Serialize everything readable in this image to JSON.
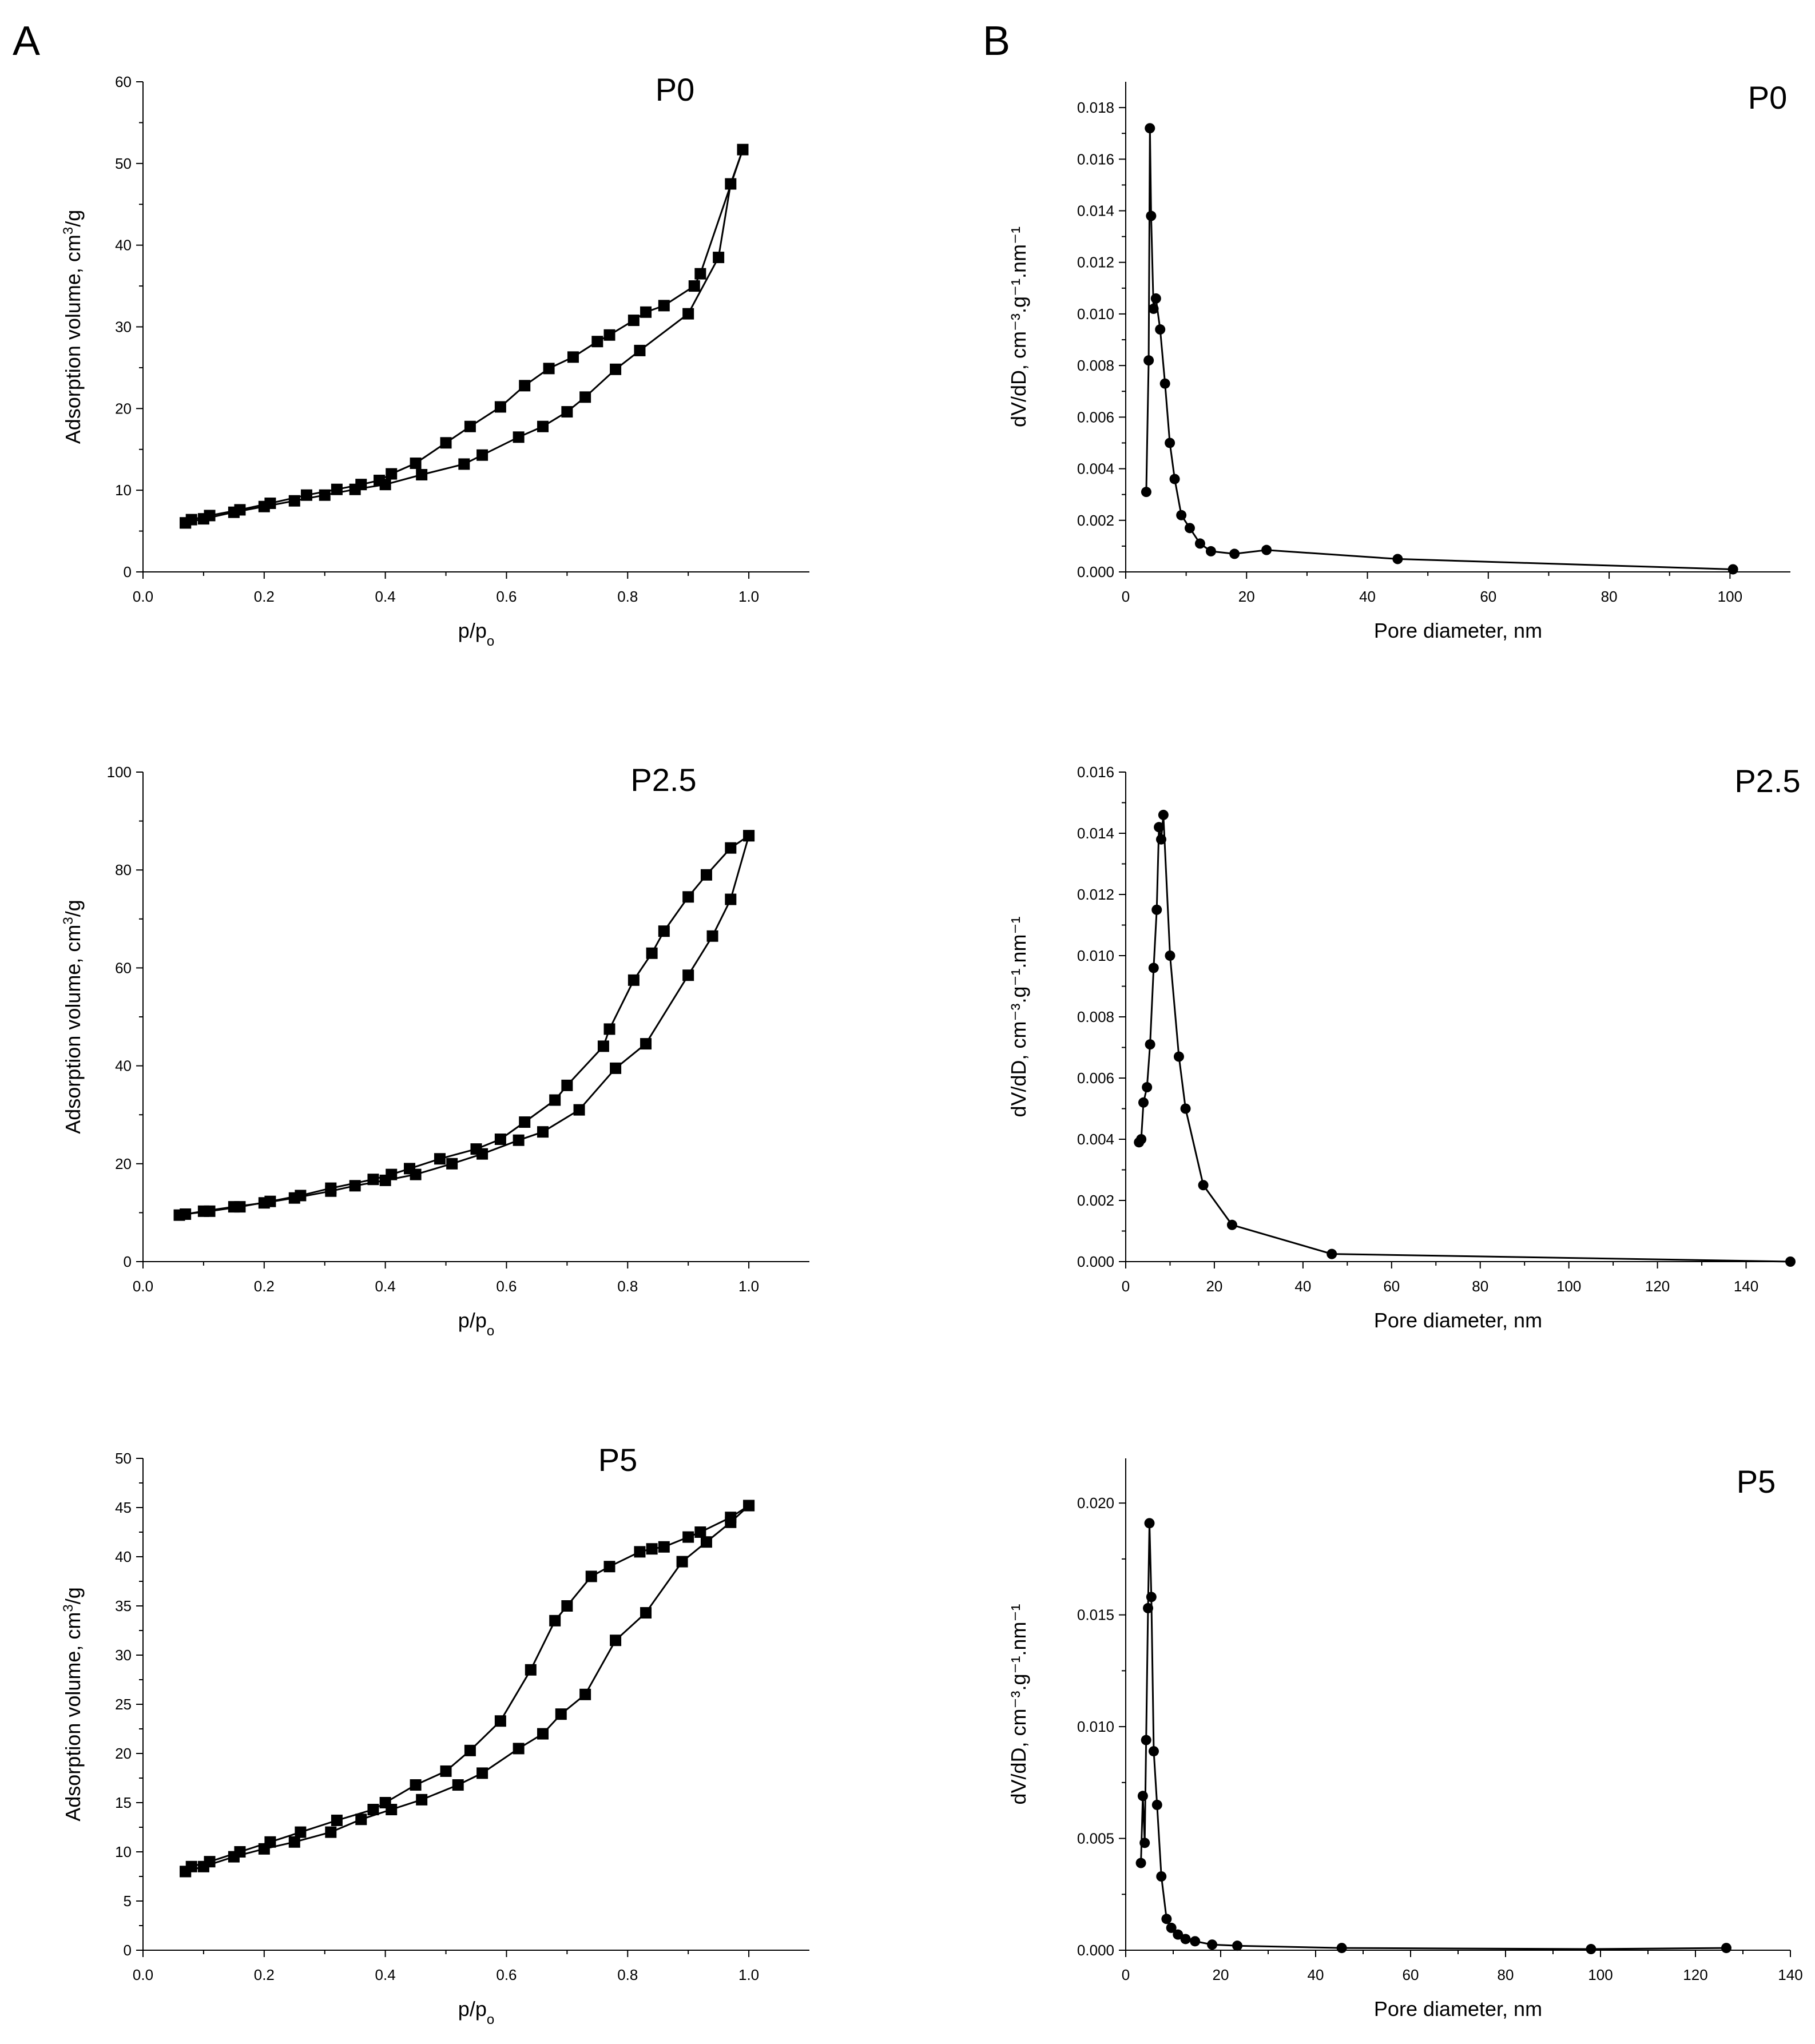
{
  "figure": {
    "panel_labels": [
      "A",
      "B"
    ]
  },
  "colors": {
    "ink": "#000000",
    "background": "#ffffff"
  },
  "chart_data": [
    {
      "id": "iso-p0",
      "column": "A",
      "type": "line",
      "title": "P0",
      "marker": "square",
      "xlabel": "p/p",
      "xlabel_sub": "o",
      "ylabel": "Adsorption volume, cm",
      "ylabel_sup": "3",
      "ylabel_tail": "/g",
      "xlim": [
        0,
        1.1
      ],
      "ylim": [
        0,
        60
      ],
      "x_ticks": [
        0.0,
        0.2,
        0.4,
        0.6,
        0.8,
        1.0
      ],
      "x_tick_labels": [
        "0.0",
        "0.2",
        "0.4",
        "0.6",
        "0.8",
        "1.0"
      ],
      "y_ticks": [
        0,
        10,
        20,
        30,
        40,
        50,
        60
      ],
      "y_tick_labels": [
        "0",
        "10",
        "20",
        "30",
        "40",
        "50",
        "60"
      ],
      "series": [
        {
          "name": "adsorption",
          "x": [
            0.07,
            0.1,
            0.15,
            0.2,
            0.25,
            0.3,
            0.35,
            0.4,
            0.46,
            0.53,
            0.56,
            0.62,
            0.66,
            0.7,
            0.73,
            0.78,
            0.82,
            0.9,
            0.95,
            0.97,
            0.99
          ],
          "y": [
            6.0,
            6.5,
            7.3,
            8.0,
            8.7,
            9.4,
            10.1,
            10.7,
            11.9,
            13.2,
            14.3,
            16.5,
            17.8,
            19.6,
            21.4,
            24.8,
            27.1,
            31.6,
            38.5,
            47.5,
            51.7
          ]
        },
        {
          "name": "desorption",
          "x": [
            0.99,
            0.92,
            0.91,
            0.86,
            0.83,
            0.81,
            0.77,
            0.75,
            0.71,
            0.67,
            0.63,
            0.59,
            0.54,
            0.5,
            0.45,
            0.41,
            0.39,
            0.36,
            0.32,
            0.27,
            0.21,
            0.16,
            0.11,
            0.08,
            0.07
          ],
          "y": [
            51.7,
            36.5,
            35.0,
            32.6,
            31.8,
            30.8,
            29.0,
            28.2,
            26.3,
            24.9,
            22.8,
            20.2,
            17.8,
            15.8,
            13.3,
            12.0,
            11.2,
            10.7,
            10.1,
            9.4,
            8.4,
            7.6,
            6.9,
            6.4,
            6.0
          ]
        }
      ]
    },
    {
      "id": "psd-p0",
      "column": "B",
      "type": "line",
      "title": "P0",
      "marker": "circle",
      "xlabel": "Pore diameter, nm",
      "ylabel": "dV/dD, cm⁻³.g⁻¹.nm⁻¹",
      "xlim": [
        0,
        110
      ],
      "ylim": [
        0,
        0.019
      ],
      "x_ticks": [
        0,
        20,
        40,
        60,
        80,
        100
      ],
      "x_tick_labels": [
        "0",
        "20",
        "40",
        "60",
        "80",
        "100"
      ],
      "y_ticks": [
        0,
        0.002,
        0.004,
        0.006,
        0.008,
        0.01,
        0.012,
        0.014,
        0.016,
        0.018
      ],
      "y_tick_labels": [
        "0.000",
        "0.002",
        "0.004",
        "0.006",
        "0.008",
        "0.010",
        "0.012",
        "0.014",
        "0.016",
        "0.018"
      ],
      "series": [
        {
          "name": "BJH",
          "x": [
            3.4,
            3.8,
            4.0,
            4.2,
            4.6,
            5.0,
            5.7,
            6.5,
            7.3,
            8.1,
            9.2,
            10.6,
            12.3,
            14.1,
            18.0,
            23.3,
            45.0,
            100.5
          ],
          "y": [
            0.0031,
            0.0082,
            0.0172,
            0.0138,
            0.0102,
            0.0106,
            0.0094,
            0.0073,
            0.005,
            0.0036,
            0.0022,
            0.0017,
            0.0011,
            0.0008,
            0.0007,
            0.00085,
            0.0005,
            0.0001
          ]
        }
      ]
    },
    {
      "id": "iso-p25",
      "column": "A",
      "type": "line",
      "title": "P2.5",
      "marker": "square",
      "xlabel": "p/p",
      "xlabel_sub": "o",
      "ylabel": "Adsorption volume, cm",
      "ylabel_sup": "3",
      "ylabel_tail": "/g",
      "xlim": [
        0,
        1.1
      ],
      "ylim": [
        0,
        100
      ],
      "x_ticks": [
        0.0,
        0.2,
        0.4,
        0.6,
        0.8,
        1.0
      ],
      "x_tick_labels": [
        "0.0",
        "0.2",
        "0.4",
        "0.6",
        "0.8",
        "1.0"
      ],
      "y_ticks": [
        0,
        20,
        40,
        60,
        80,
        100
      ],
      "y_tick_labels": [
        "0",
        "20",
        "40",
        "60",
        "80",
        "100"
      ],
      "series": [
        {
          "name": "adsorption",
          "x": [
            0.06,
            0.1,
            0.15,
            0.2,
            0.25,
            0.31,
            0.35,
            0.4,
            0.45,
            0.51,
            0.56,
            0.62,
            0.66,
            0.72,
            0.78,
            0.83,
            0.9,
            0.94,
            0.97,
            1.0
          ],
          "y": [
            9.5,
            10.3,
            11.2,
            12.0,
            13.0,
            14.4,
            15.5,
            16.6,
            17.8,
            20.0,
            22.0,
            24.8,
            26.5,
            31.0,
            39.5,
            44.5,
            58.5,
            66.5,
            74.0,
            87.0
          ]
        },
        {
          "name": "desorption",
          "x": [
            1.0,
            0.97,
            0.93,
            0.9,
            0.86,
            0.84,
            0.81,
            0.77,
            0.76,
            0.7,
            0.68,
            0.63,
            0.59,
            0.55,
            0.49,
            0.44,
            0.41,
            0.38,
            0.31,
            0.26,
            0.21,
            0.16,
            0.11,
            0.07
          ],
          "y": [
            87.0,
            84.5,
            79.0,
            74.5,
            67.5,
            63.0,
            57.5,
            47.5,
            44.0,
            36.0,
            33.0,
            28.5,
            25.0,
            23.0,
            21.0,
            19.0,
            17.8,
            16.8,
            15.0,
            13.5,
            12.3,
            11.2,
            10.3,
            9.7
          ]
        }
      ]
    },
    {
      "id": "psd-p25",
      "column": "B",
      "type": "line",
      "title": "P2.5",
      "marker": "circle",
      "xlabel": "Pore diameter, nm",
      "ylabel": "dV/dD, cm⁻³.g⁻¹.nm⁻¹",
      "xlim": [
        0,
        150
      ],
      "ylim": [
        0,
        0.016
      ],
      "x_ticks": [
        0,
        20,
        40,
        60,
        80,
        100,
        120,
        140
      ],
      "x_tick_labels": [
        "0",
        "20",
        "40",
        "60",
        "80",
        "100",
        "120",
        "140"
      ],
      "y_ticks": [
        0,
        0.002,
        0.004,
        0.006,
        0.008,
        0.01,
        0.012,
        0.014,
        0.016
      ],
      "y_tick_labels": [
        "0.000",
        "0.002",
        "0.004",
        "0.006",
        "0.008",
        "0.010",
        "0.012",
        "0.014",
        "0.016"
      ],
      "series": [
        {
          "name": "BJH",
          "x": [
            3.0,
            3.5,
            4.0,
            4.8,
            5.5,
            6.3,
            7.0,
            7.5,
            8.0,
            8.5,
            10.0,
            12.0,
            13.5,
            17.5,
            24.0,
            46.5,
            150.0
          ],
          "y": [
            0.0039,
            0.004,
            0.0052,
            0.0057,
            0.0071,
            0.0096,
            0.0115,
            0.0142,
            0.0138,
            0.0146,
            0.01,
            0.0067,
            0.005,
            0.0025,
            0.0012,
            0.00025,
            0.0
          ]
        }
      ]
    },
    {
      "id": "iso-p5",
      "column": "A",
      "type": "line",
      "title": "P5",
      "marker": "square",
      "xlabel": "p/p",
      "xlabel_sub": "o",
      "ylabel": "Adsorption volume, cm",
      "ylabel_sup": "3",
      "ylabel_tail": "/g",
      "xlim": [
        0,
        1.1
      ],
      "ylim": [
        0,
        50
      ],
      "x_ticks": [
        0.0,
        0.2,
        0.4,
        0.6,
        0.8,
        1.0
      ],
      "x_tick_labels": [
        "0.0",
        "0.2",
        "0.4",
        "0.6",
        "0.8",
        "1.0"
      ],
      "y_ticks": [
        0,
        5,
        10,
        15,
        20,
        25,
        30,
        35,
        40,
        45,
        50
      ],
      "y_tick_labels": [
        "0",
        "5",
        "10",
        "15",
        "20",
        "25",
        "30",
        "35",
        "40",
        "45",
        "50"
      ],
      "series": [
        {
          "name": "adsorption",
          "x": [
            0.07,
            0.1,
            0.15,
            0.2,
            0.25,
            0.31,
            0.36,
            0.41,
            0.46,
            0.52,
            0.56,
            0.62,
            0.66,
            0.69,
            0.73,
            0.78,
            0.83,
            0.89,
            0.93,
            0.97,
            1.0
          ],
          "y": [
            8.0,
            8.5,
            9.5,
            10.3,
            11.0,
            12.0,
            13.3,
            14.3,
            15.3,
            16.8,
            18.0,
            20.5,
            22.0,
            24.0,
            26.0,
            31.5,
            34.3,
            39.5,
            41.5,
            43.5,
            45.2
          ]
        },
        {
          "name": "desorption",
          "x": [
            1.0,
            0.97,
            0.92,
            0.9,
            0.86,
            0.84,
            0.82,
            0.77,
            0.74,
            0.7,
            0.68,
            0.64,
            0.59,
            0.54,
            0.5,
            0.45,
            0.4,
            0.38,
            0.32,
            0.26,
            0.21,
            0.16,
            0.11,
            0.08,
            0.07
          ],
          "y": [
            45.2,
            44.0,
            42.5,
            42.0,
            41.0,
            40.8,
            40.5,
            39.0,
            38.0,
            35.0,
            33.5,
            28.5,
            23.3,
            20.3,
            18.2,
            16.8,
            15.0,
            14.3,
            13.2,
            12.0,
            11.0,
            10.0,
            9.0,
            8.5,
            8.0
          ]
        }
      ]
    },
    {
      "id": "psd-p5",
      "column": "B",
      "type": "line",
      "title": "P5",
      "marker": "circle",
      "xlabel": "Pore diameter, nm",
      "ylabel": "dV/dD, cm⁻³.g⁻¹.nm⁻¹",
      "xlim": [
        0,
        140
      ],
      "ylim": [
        0,
        0.022
      ],
      "x_ticks": [
        0,
        20,
        40,
        60,
        80,
        100,
        120,
        140
      ],
      "x_tick_labels": [
        "0",
        "20",
        "40",
        "60",
        "80",
        "100",
        "120",
        "140"
      ],
      "y_ticks": [
        0,
        0.005,
        0.01,
        0.015,
        0.02
      ],
      "y_tick_labels": [
        "0.000",
        "0.005",
        "0.010",
        "0.015",
        "0.020"
      ],
      "series": [
        {
          "name": "BJH",
          "x": [
            3.2,
            3.6,
            4.0,
            4.3,
            4.7,
            5.0,
            5.4,
            5.9,
            6.6,
            7.5,
            8.6,
            9.6,
            11.0,
            12.6,
            14.6,
            18.2,
            23.5,
            45.5,
            98.0,
            126.5
          ],
          "y": [
            0.0039,
            0.0069,
            0.0048,
            0.0094,
            0.0153,
            0.0191,
            0.0158,
            0.0089,
            0.0065,
            0.0033,
            0.0014,
            0.001,
            0.0007,
            0.0005,
            0.0004,
            0.00025,
            0.0002,
            0.0001,
            5e-05,
            0.0001
          ]
        }
      ]
    }
  ]
}
